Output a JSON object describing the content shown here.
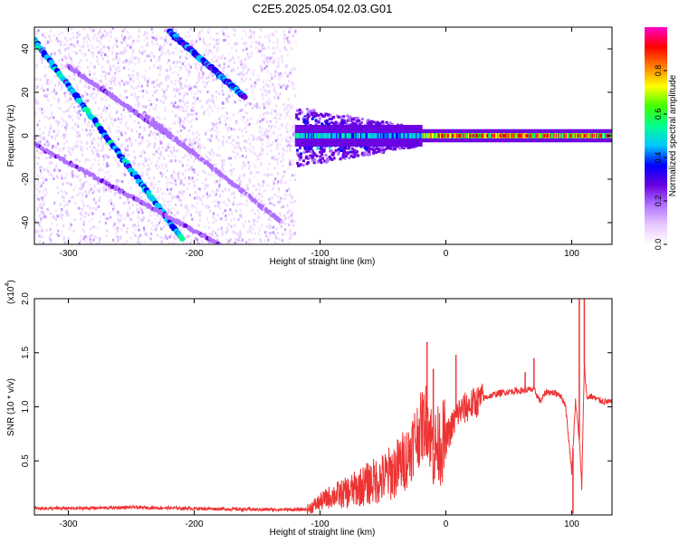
{
  "title": "C2E5.2025.054.02.03.G01",
  "chart_data": [
    {
      "type": "heatmap",
      "xlabel": "Height of straight line (km)",
      "ylabel": "Frequency (Hz)",
      "xlim": [
        -327,
        132
      ],
      "ylim": [
        -50,
        50
      ],
      "x_ticks": [
        -300,
        -200,
        -100,
        0,
        100
      ],
      "y_ticks": [
        -40,
        -20,
        0,
        20,
        40
      ],
      "colorbar": {
        "label": "Normalized spectral amplitude",
        "range": [
          0.0,
          1.0
        ],
        "ticks": [
          0.0,
          0.2,
          0.4,
          0.6,
          0.8
        ],
        "colors": [
          "#ffffff",
          "#e8c8ff",
          "#b070ff",
          "#6a00e0",
          "#0000ff",
          "#00c8ff",
          "#00ff90",
          "#40ff00",
          "#ffff00",
          "#ff8000",
          "#ff0000",
          "#ff00c8"
        ]
      },
      "features": [
        {
          "name": "diagonal streak",
          "x": [
            -327,
            -210
          ],
          "y": [
            44,
            -47
          ],
          "amplitude": 0.45
        },
        {
          "name": "diagonal streak",
          "x": [
            -220,
            -160
          ],
          "y": [
            48,
            18
          ],
          "amplitude": 0.4
        },
        {
          "name": "diagonal streak",
          "x": [
            -327,
            -180
          ],
          "y": [
            -4,
            -50
          ],
          "amplitude": 0.2
        },
        {
          "name": "diagonal streak",
          "x": [
            -300,
            -200
          ],
          "y": [
            32,
            -8
          ],
          "amplitude": 0.2
        },
        {
          "name": "diagonal streak",
          "x": [
            -240,
            -130
          ],
          "y": [
            10,
            -40
          ],
          "amplitude": 0.18
        },
        {
          "name": "carrier line",
          "x": [
            -120,
            132
          ],
          "y": [
            0,
            0
          ],
          "amplitude": 0.95
        }
      ],
      "noise_region_x": [
        -327,
        -120
      ],
      "transition_region_x": [
        -120,
        -20
      ]
    },
    {
      "type": "line",
      "xlabel": "Height of straight line (km)",
      "ylabel": "SNR (10 * v/v)",
      "y_multiplier": "(x10",
      "y_multiplier_exp": "4",
      "y_multiplier_close": ")",
      "xlim": [
        -327,
        132
      ],
      "ylim": [
        0,
        2.0
      ],
      "x_ticks": [
        -300,
        -200,
        -100,
        0,
        100
      ],
      "y_ticks": [
        0.5,
        1.0,
        1.5,
        2.0
      ],
      "color": "#ee3333",
      "series": [
        {
          "x": [
            -327,
            -300,
            -250,
            -200,
            -150,
            -110,
            -100,
            -90,
            -80,
            -70,
            -60,
            -50,
            -40,
            -30,
            -25,
            -20,
            -15,
            -10,
            -5,
            0,
            5,
            10,
            20,
            30,
            40,
            50,
            60,
            70,
            75,
            80,
            90,
            95,
            100,
            103,
            106,
            108,
            110,
            112,
            115,
            120,
            125,
            132
          ],
          "y": [
            0.06,
            0.06,
            0.07,
            0.06,
            0.05,
            0.05,
            0.12,
            0.18,
            0.2,
            0.25,
            0.3,
            0.34,
            0.42,
            0.55,
            0.7,
            0.8,
            0.9,
            0.6,
            0.65,
            0.7,
            0.82,
            0.95,
            1.02,
            1.08,
            1.12,
            1.14,
            1.15,
            1.16,
            1.05,
            1.14,
            1.12,
            1.02,
            0.4,
            1.05,
            0.7,
            0.25,
            1.4,
            1.08,
            1.1,
            1.07,
            1.05,
            1.04
          ]
        }
      ],
      "spikes": [
        {
          "x": -15,
          "y": 1.6
        },
        {
          "x": -10,
          "y": 1.35
        },
        {
          "x": 8,
          "y": 1.48
        },
        {
          "x": 63,
          "y": 1.32
        },
        {
          "x": 70,
          "y": 1.45
        },
        {
          "x": 106,
          "y": 2.0
        },
        {
          "x": 110,
          "y": 2.0
        },
        {
          "x": 101,
          "y": 0.01
        }
      ]
    }
  ]
}
